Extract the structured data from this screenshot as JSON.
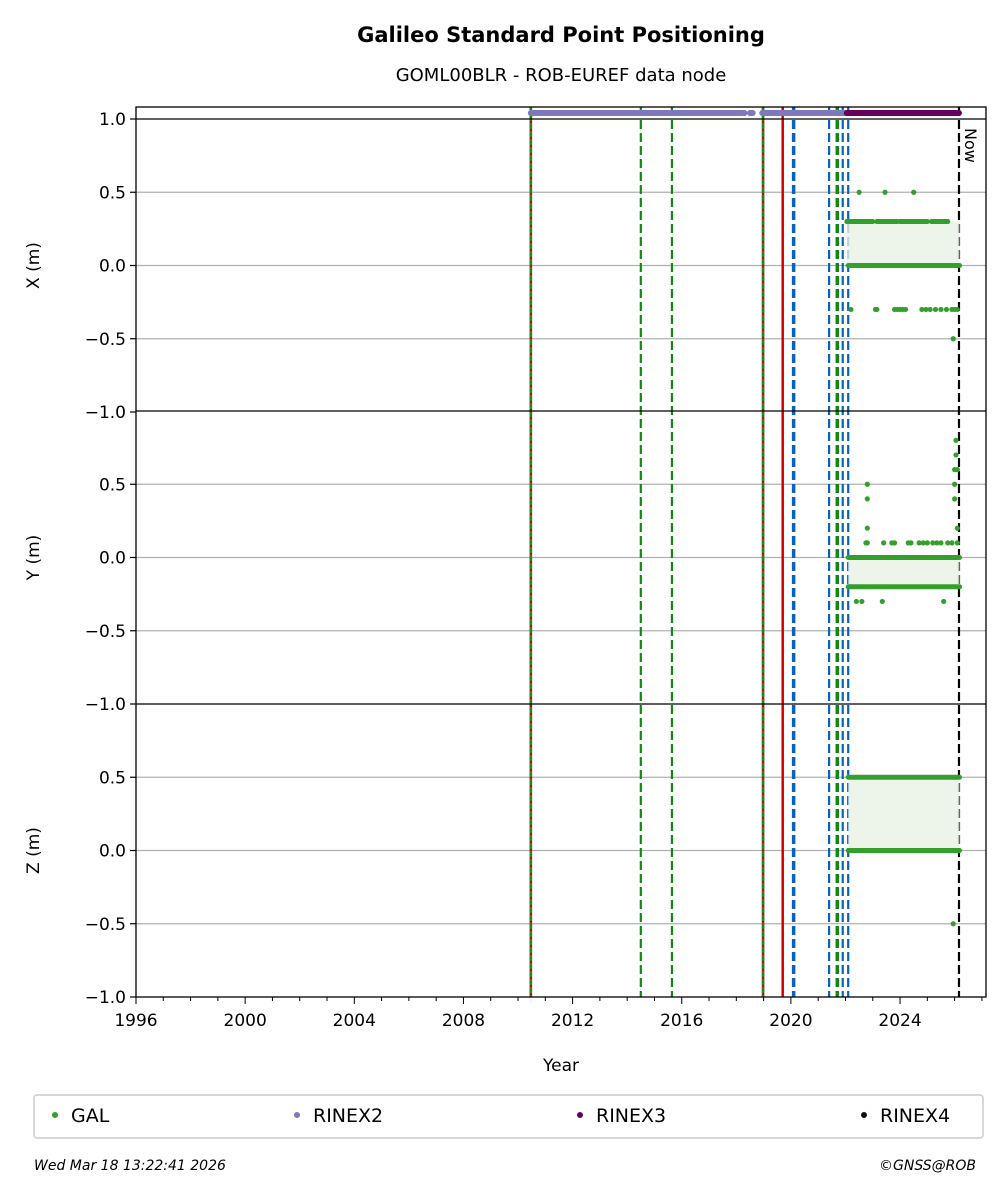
{
  "chart_data": {
    "type": "scatter",
    "title": "Galileo Standard Point Positioning",
    "subtitle": "GOML00BLR - ROB-EUREF data node",
    "xlabel": "Year",
    "xlim": [
      1996,
      2027.15
    ],
    "x_ticks": [
      "1996",
      "2000",
      "2004",
      "2008",
      "2012",
      "2016",
      "2020",
      "2024"
    ],
    "y_ticks": [
      "1.0",
      "0.5",
      "0.0",
      "−0.5",
      "−1.0"
    ],
    "grid": "horizontal",
    "now_label": "Now",
    "now_year": 2026.16,
    "panels": [
      {
        "ylabel": "X (m)",
        "ylim": [
          -1,
          1
        ],
        "levels": [
          {
            "y": 0,
            "from": 2022.1,
            "to": 2026.18
          },
          {
            "y": 0.3,
            "from": 2022.05,
            "to": 2023.0
          },
          {
            "y": 0.3,
            "from": 2023.15,
            "to": 2023.9
          },
          {
            "y": 0.3,
            "from": 2024.0,
            "to": 2025.0
          },
          {
            "y": 0.3,
            "from": 2025.15,
            "to": 2025.75
          }
        ],
        "points": [
          [
            2022.5,
            0.5
          ],
          [
            2023.45,
            0.5
          ],
          [
            2024.5,
            0.5
          ],
          [
            2022.2,
            -0.3
          ],
          [
            2023.1,
            -0.3
          ],
          [
            2023.15,
            -0.3
          ],
          [
            2023.8,
            -0.3
          ],
          [
            2023.9,
            -0.3
          ],
          [
            2024.0,
            -0.3
          ],
          [
            2024.1,
            -0.3
          ],
          [
            2024.2,
            -0.3
          ],
          [
            2024.8,
            -0.3
          ],
          [
            2024.95,
            -0.3
          ],
          [
            2025.1,
            -0.3
          ],
          [
            2025.3,
            -0.3
          ],
          [
            2025.5,
            -0.3
          ],
          [
            2025.7,
            -0.3
          ],
          [
            2025.9,
            -0.3
          ],
          [
            2026.0,
            -0.3
          ],
          [
            2026.1,
            -0.3
          ],
          [
            2025.95,
            -0.5
          ]
        ]
      },
      {
        "ylabel": "Y (m)",
        "ylim": [
          -1,
          1
        ],
        "levels": [
          {
            "y": 0,
            "from": 2022.1,
            "to": 2026.18
          },
          {
            "y": -0.2,
            "from": 2022.1,
            "to": 2026.18
          }
        ],
        "points": [
          [
            2022.8,
            0.5
          ],
          [
            2022.8,
            0.4
          ],
          [
            2022.8,
            0.2
          ],
          [
            2022.8,
            0.1
          ],
          [
            2022.75,
            0.1
          ],
          [
            2023.4,
            0.1
          ],
          [
            2023.7,
            0.1
          ],
          [
            2023.8,
            0.1
          ],
          [
            2024.3,
            0.1
          ],
          [
            2024.4,
            0.1
          ],
          [
            2024.7,
            0.1
          ],
          [
            2024.85,
            0.1
          ],
          [
            2025.0,
            0.1
          ],
          [
            2025.2,
            0.1
          ],
          [
            2025.35,
            0.1
          ],
          [
            2025.5,
            0.1
          ],
          [
            2025.75,
            0.1
          ],
          [
            2025.9,
            0.1
          ],
          [
            2026.1,
            0.1
          ],
          [
            2022.4,
            -0.3
          ],
          [
            2022.6,
            -0.3
          ],
          [
            2023.35,
            -0.3
          ],
          [
            2025.6,
            -0.3
          ],
          [
            2026.05,
            0.8
          ],
          [
            2026.05,
            0.7
          ],
          [
            2026.0,
            0.6
          ],
          [
            2026.1,
            0.6
          ],
          [
            2026.0,
            0.5
          ],
          [
            2026.0,
            0.4
          ],
          [
            2026.1,
            0.2
          ]
        ]
      },
      {
        "ylabel": "Z (m)",
        "ylim": [
          -1,
          1
        ],
        "levels": [
          {
            "y": 0.5,
            "from": 2022.1,
            "to": 2026.18
          },
          {
            "y": 0,
            "from": 2022.1,
            "to": 2026.18
          }
        ],
        "points": [
          [
            2025.95,
            -0.5
          ]
        ]
      }
    ],
    "rinex_strip": [
      {
        "name": "RINEX2",
        "from": 2010.47,
        "to": 2018.3
      },
      {
        "name": "RINEX2",
        "from": 2018.5,
        "to": 2018.6
      },
      {
        "name": "RINEX2",
        "from": 2018.95,
        "to": 2022.1
      },
      {
        "name": "RINEX3",
        "from": 2022.05,
        "to": 2026.16
      }
    ],
    "events": [
      {
        "year": 2010.47,
        "style": "red-green-dashed"
      },
      {
        "year": 2014.5,
        "style": "green-dashed"
      },
      {
        "year": 2015.64,
        "style": "green-dashed"
      },
      {
        "year": 2018.98,
        "style": "red-green-dashed"
      },
      {
        "year": 2019.7,
        "style": "red-solid"
      },
      {
        "year": 2020.1,
        "style": "blue-dashed"
      },
      {
        "year": 2021.4,
        "style": "blue-dashed"
      },
      {
        "year": 2021.7,
        "style": "green-dashed"
      },
      {
        "year": 2021.9,
        "style": "blue-dashed"
      },
      {
        "year": 2022.1,
        "style": "blue-dashed"
      }
    ],
    "legend": [
      {
        "label": "GAL",
        "color": "#33a02c"
      },
      {
        "label": "RINEX2",
        "color": "#8078bc"
      },
      {
        "label": "RINEX3",
        "color": "#66005f"
      },
      {
        "label": "RINEX4",
        "color": "#1a0a14"
      }
    ],
    "legend_placement": "bottom"
  },
  "footer": {
    "timestamp": "Wed Mar 18 13:22:41 2026",
    "credit": "©GNSS@ROB"
  }
}
